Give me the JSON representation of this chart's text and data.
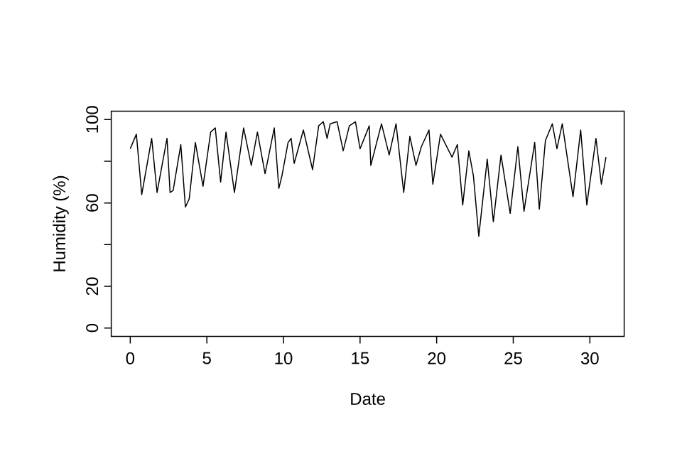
{
  "chart_data": {
    "type": "line",
    "xlabel": "Date",
    "ylabel": "Humidity (%)",
    "color": "#000000",
    "x": [
      0,
      0.4,
      0.75,
      1.4,
      1.75,
      2.4,
      2.6,
      2.8,
      3.3,
      3.6,
      3.85,
      4.25,
      4.75,
      5.25,
      5.55,
      5.9,
      6.25,
      6.8,
      7.4,
      7.9,
      8.3,
      8.8,
      9.4,
      9.7,
      9.9,
      10.3,
      10.5,
      10.7,
      11.3,
      11.9,
      12.3,
      12.6,
      12.85,
      13.05,
      13.5,
      13.9,
      14.3,
      14.7,
      15.0,
      15.6,
      15.7,
      16.4,
      16.9,
      17.35,
      17.85,
      18.25,
      18.65,
      19.0,
      19.5,
      19.75,
      20.25,
      21.0,
      21.35,
      21.7,
      22.1,
      22.4,
      22.75,
      23.3,
      23.7,
      24.2,
      24.8,
      25.3,
      25.7,
      26.4,
      26.7,
      27.1,
      27.55,
      27.85,
      28.2,
      28.9,
      29.4,
      29.8,
      30.4,
      30.75,
      31.05
    ],
    "values": [
      86,
      93,
      64,
      91,
      65,
      91,
      65,
      66,
      88,
      58,
      62,
      89,
      68,
      94,
      96,
      70,
      94,
      65,
      96,
      78,
      94,
      74,
      96,
      67,
      73,
      89,
      91,
      79,
      95,
      76,
      97,
      99,
      91,
      98,
      99,
      85,
      97,
      99,
      86,
      97,
      78,
      98,
      83,
      98,
      65,
      92,
      78,
      87,
      95,
      69,
      93,
      82,
      88,
      59,
      85,
      73,
      44,
      81,
      51,
      83,
      55,
      87,
      56,
      89,
      57,
      90,
      98,
      86,
      98,
      63,
      95,
      59,
      91,
      69,
      82
    ],
    "xlim": [
      -1.24,
      32.24
    ],
    "ylim": [
      -4,
      104
    ],
    "xticks": [
      0,
      5,
      10,
      15,
      20,
      25,
      30
    ],
    "yticks": [
      0,
      20,
      {
        "value": 40,
        "label": null
      },
      60,
      {
        "value": 80,
        "label": null
      },
      100
    ],
    "grid": false
  }
}
